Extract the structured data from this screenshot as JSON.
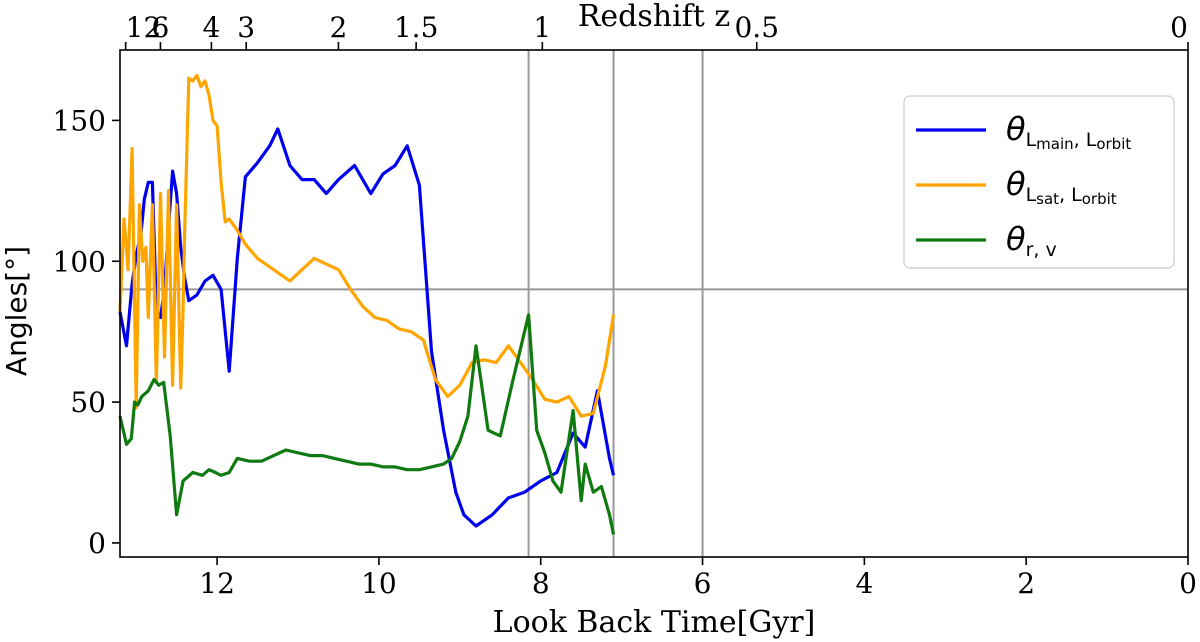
{
  "chart_data": {
    "type": "line",
    "xlabel": "Look Back Time[Gyr]",
    "ylabel": "Angles[°]",
    "top_axis_label": "Redshift z",
    "xlim": [
      13.2,
      0
    ],
    "ylim": [
      -5,
      175
    ],
    "x_ticks": [
      12,
      10,
      8,
      6,
      4,
      2,
      0
    ],
    "y_ticks": [
      0,
      50,
      100,
      150
    ],
    "top_ticks": [
      {
        "label": "12",
        "t": 13.13
      },
      {
        "label": "6",
        "t": 12.7
      },
      {
        "label": "4",
        "t": 12.07
      },
      {
        "label": "3",
        "t": 11.64
      },
      {
        "label": "2",
        "t": 10.5
      },
      {
        "label": "1.5",
        "t": 9.54
      },
      {
        "label": "1",
        "t": 7.98
      },
      {
        "label": "0.5",
        "t": 5.33
      },
      {
        "label": "0",
        "t": 0
      }
    ],
    "reference_lines": {
      "vertical": [
        8.15,
        7.1,
        6.0
      ],
      "horizontal": [
        90
      ]
    },
    "grid": false,
    "legend_position": "top-right",
    "series": [
      {
        "name_base": "θ",
        "name_sub": "L",
        "name_subsub1": "main",
        "name_mid": ", L",
        "name_subsub2": "orbit",
        "color": "#0000ee",
        "x": [
          13.2,
          13.12,
          13.05,
          13.0,
          12.94,
          12.9,
          12.85,
          12.8,
          12.75,
          12.7,
          12.65,
          12.6,
          12.55,
          12.5,
          12.45,
          12.4,
          12.35,
          12.25,
          12.15,
          12.05,
          11.95,
          11.85,
          11.75,
          11.65,
          11.5,
          11.35,
          11.25,
          11.1,
          10.95,
          10.8,
          10.65,
          10.5,
          10.3,
          10.1,
          9.95,
          9.8,
          9.65,
          9.5,
          9.35,
          9.2,
          9.05,
          8.95,
          8.8,
          8.6,
          8.4,
          8.2,
          8.0,
          7.8,
          7.6,
          7.45,
          7.3,
          7.15,
          7.1
        ],
        "y": [
          82,
          70,
          92,
          102,
          110,
          122,
          128,
          128,
          82,
          80,
          90,
          112,
          132,
          124,
          105,
          94,
          86,
          88,
          93,
          95,
          90,
          61,
          101,
          130,
          135,
          141,
          147,
          134,
          129,
          129,
          124,
          129,
          134,
          124,
          131,
          134,
          141,
          127,
          68,
          40,
          18,
          10,
          6,
          10,
          16,
          18,
          22,
          25,
          39,
          34,
          54,
          30,
          24
        ]
      },
      {
        "name_base": "θ",
        "name_sub": "L",
        "name_subsub1": "sat",
        "name_mid": ", L",
        "name_subsub2": "orbit",
        "color": "#ffa500",
        "x": [
          13.2,
          13.15,
          13.1,
          13.05,
          13.0,
          12.96,
          12.92,
          12.88,
          12.85,
          12.8,
          12.75,
          12.7,
          12.65,
          12.6,
          12.55,
          12.5,
          12.45,
          12.42,
          12.4,
          12.35,
          12.3,
          12.25,
          12.2,
          12.15,
          12.1,
          12.05,
          12.0,
          11.95,
          11.9,
          11.85,
          11.75,
          11.65,
          11.5,
          11.3,
          11.1,
          10.95,
          10.8,
          10.65,
          10.5,
          10.35,
          10.2,
          10.05,
          9.9,
          9.75,
          9.6,
          9.45,
          9.3,
          9.15,
          9.0,
          8.85,
          8.7,
          8.55,
          8.4,
          8.25,
          8.1,
          7.95,
          7.8,
          7.65,
          7.5,
          7.35,
          7.2,
          7.1
        ],
        "y": [
          82,
          115,
          97,
          140,
          48,
          120,
          100,
          105,
          80,
          120,
          57,
          124,
          66,
          125,
          56,
          120,
          55,
          83,
          111,
          165,
          164,
          166,
          162,
          164,
          159,
          150,
          148,
          128,
          114,
          115,
          111,
          106,
          101,
          97,
          93,
          97,
          101,
          99,
          97,
          90,
          84,
          80,
          79,
          76,
          75,
          72,
          58,
          52,
          56,
          64,
          65,
          64,
          70,
          64,
          58,
          51,
          50,
          52,
          45,
          46,
          63,
          81
        ]
      },
      {
        "name_base": "θ",
        "name_sub": "r, v",
        "color": "#0f7a0f",
        "x": [
          13.2,
          13.12,
          13.06,
          13.02,
          12.98,
          12.93,
          12.85,
          12.78,
          12.72,
          12.66,
          12.58,
          12.5,
          12.42,
          12.3,
          12.18,
          12.1,
          12.02,
          11.95,
          11.85,
          11.75,
          11.6,
          11.45,
          11.3,
          11.15,
          11.0,
          10.85,
          10.7,
          10.55,
          10.4,
          10.25,
          10.1,
          9.95,
          9.8,
          9.65,
          9.5,
          9.35,
          9.2,
          9.1,
          9.0,
          8.9,
          8.8,
          8.65,
          8.5,
          8.35,
          8.15,
          8.05,
          7.95,
          7.85,
          7.75,
          7.6,
          7.5,
          7.45,
          7.35,
          7.25,
          7.15,
          7.1
        ],
        "y": [
          45,
          35,
          37,
          50,
          49,
          52,
          54,
          58,
          56,
          57,
          38,
          10,
          22,
          25,
          24,
          26,
          25,
          24,
          25,
          30,
          29,
          29,
          31,
          33,
          32,
          31,
          31,
          30,
          29,
          28,
          28,
          27,
          27,
          26,
          26,
          27,
          28,
          30,
          36,
          45,
          70,
          40,
          38,
          57,
          81,
          40,
          32,
          22,
          18,
          47,
          15,
          28,
          18,
          20,
          10,
          3
        ]
      }
    ]
  }
}
